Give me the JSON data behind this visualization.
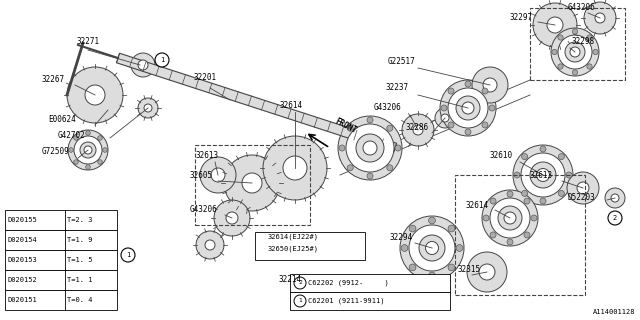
{
  "bg_color": "#ffffff",
  "lc": "#444444",
  "dc": "#000000",
  "part_color": "#cccccc",
  "diagram_id": "A114001128",
  "table_data": [
    [
      "D020151",
      "T=0. 4"
    ],
    [
      "D020152",
      "T=1. 1"
    ],
    [
      "D020153",
      "T=1. 5"
    ],
    [
      "D020154",
      "T=1. 9"
    ],
    [
      "D020155",
      "T=2. 3"
    ]
  ],
  "legend_data": [
    {
      "num": "1",
      "text": "C62201 (9211-9911)"
    },
    {
      "num": "2",
      "text": "C62202 (9912-     )"
    }
  ]
}
